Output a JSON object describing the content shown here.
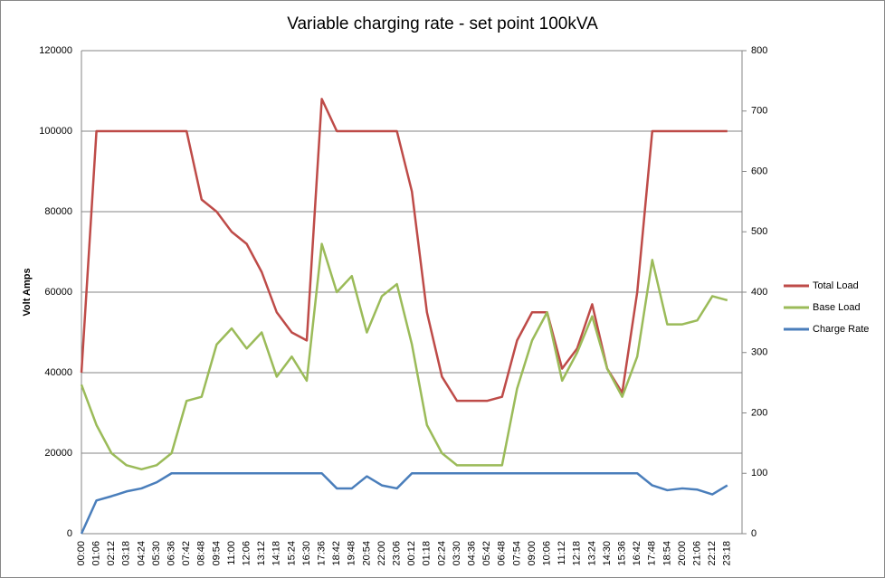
{
  "chart_data": {
    "type": "line",
    "title": "Variable charging rate - set point 100kVA",
    "y_label": "Volt Amps",
    "categories": [
      "00:00",
      "01:06",
      "02:12",
      "03:18",
      "04:24",
      "05:30",
      "06:36",
      "07:42",
      "08:48",
      "09:54",
      "11:00",
      "12:06",
      "13:12",
      "14:18",
      "15:24",
      "16:30",
      "17:36",
      "18:42",
      "19:48",
      "20:54",
      "22:00",
      "23:06",
      "00:12",
      "01:18",
      "02:24",
      "03:30",
      "04:36",
      "05:42",
      "06:48",
      "07:54",
      "09:00",
      "10:06",
      "11:12",
      "12:18",
      "13:24",
      "14:30",
      "15:36",
      "16:42",
      "17:48",
      "18:54",
      "20:00",
      "21:06",
      "22:12",
      "23:18"
    ],
    "series": [
      {
        "name": "Total Load",
        "color": "#be4b48",
        "values": [
          40000,
          100000,
          100000,
          100000,
          100000,
          100000,
          100000,
          100000,
          83000,
          80000,
          75000,
          72000,
          65000,
          55000,
          50000,
          48000,
          108000,
          100000,
          100000,
          100000,
          100000,
          100000,
          85000,
          55000,
          39000,
          33000,
          33000,
          33000,
          34000,
          48000,
          55000,
          55000,
          41000,
          46000,
          57000,
          41000,
          35000,
          60000,
          100000,
          100000,
          100000,
          100000,
          100000,
          100000
        ]
      },
      {
        "name": "Base Load",
        "color": "#9bbb59",
        "values": [
          37000,
          27000,
          20000,
          17000,
          16000,
          17000,
          20000,
          33000,
          34000,
          47000,
          51000,
          46000,
          50000,
          39000,
          44000,
          38000,
          72000,
          60000,
          64000,
          50000,
          59000,
          62000,
          47000,
          27000,
          20000,
          17000,
          17000,
          17000,
          17000,
          36000,
          48000,
          55000,
          38000,
          45000,
          54000,
          41000,
          34000,
          44000,
          68000,
          52000,
          52000,
          53000,
          59000,
          58000
        ]
      },
      {
        "name": "Charge Rate",
        "color": "#4a7ebb",
        "axis": "y2",
        "values": [
          0,
          55,
          62,
          70,
          75,
          85,
          100,
          100,
          100,
          100,
          100,
          100,
          100,
          100,
          100,
          100,
          100,
          75,
          75,
          95,
          80,
          75,
          100,
          100,
          100,
          100,
          100,
          100,
          100,
          100,
          100,
          100,
          100,
          100,
          100,
          100,
          100,
          100,
          80,
          72,
          75,
          73,
          65,
          80
        ]
      }
    ],
    "ylim": [
      0,
      120000
    ],
    "yticks": [
      0,
      20000,
      40000,
      60000,
      80000,
      100000,
      120000
    ],
    "y2lim": [
      0,
      800
    ],
    "y2ticks": [
      0,
      100,
      200,
      300,
      400,
      500,
      600,
      700,
      800
    ],
    "grid": true,
    "legend": "right"
  }
}
